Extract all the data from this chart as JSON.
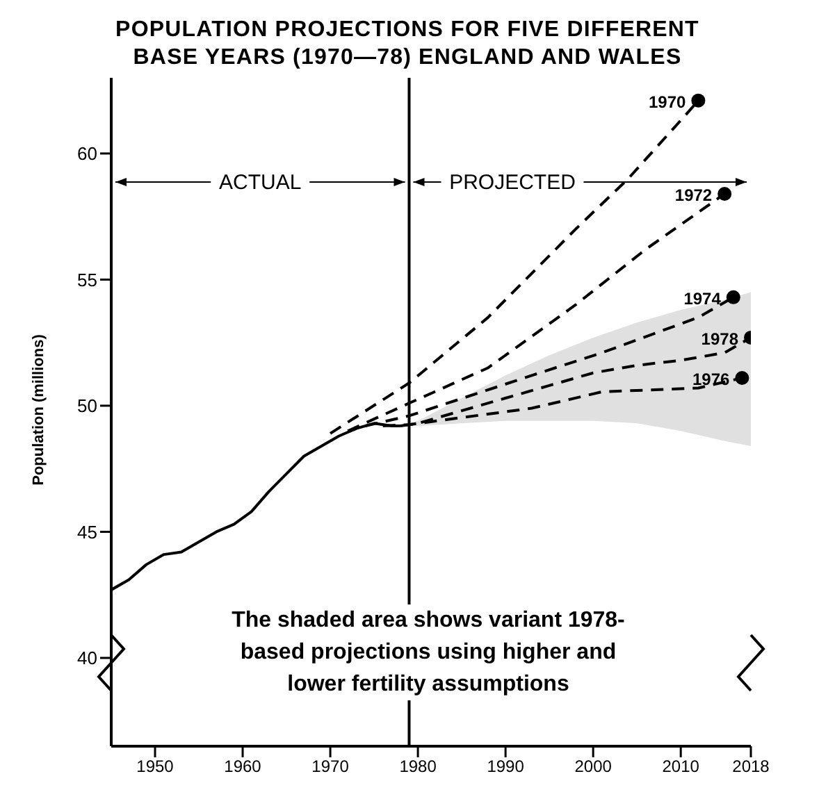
{
  "chart_data": {
    "type": "line",
    "title": "POPULATION PROJECTIONS FOR FIVE DIFFERENT BASE YEARS (1970—78) ENGLAND AND WALES",
    "ylabel": "Population (millions)",
    "xlim": [
      1945,
      2018
    ],
    "xticks": [
      1950,
      1960,
      1970,
      1980,
      1990,
      2000,
      2010,
      2018
    ],
    "ylim": [
      36.5,
      63
    ],
    "yticks": [
      40,
      45,
      50,
      55,
      60
    ],
    "ref_lines": [
      {
        "axis": "x",
        "value": 1979,
        "color": "#000000",
        "line_style": "solid"
      }
    ],
    "annotations": [
      "ACTUAL",
      "PROJECTED",
      "The shaded area shows variant 1978-based projections using higher and lower fertility assumptions"
    ],
    "series": [
      {
        "color": "#000000",
        "line_style": "solid",
        "x": [
          1945,
          1947,
          1949,
          1951,
          1953,
          1955,
          1957,
          1959,
          1961,
          1963,
          1965,
          1967,
          1969,
          1971,
          1973,
          1975,
          1977,
          1978
        ],
        "values": [
          42.7,
          43.1,
          43.7,
          44.1,
          44.2,
          44.6,
          45.0,
          45.3,
          45.8,
          46.6,
          47.3,
          48.0,
          48.4,
          48.8,
          49.1,
          49.3,
          49.2,
          49.2
        ]
      },
      {
        "name": "1970",
        "color": "#000000",
        "line_style": "dashed",
        "x": [
          1970,
          1979,
          1988,
          1998,
          2004,
          2011,
          2012
        ],
        "values": [
          48.9,
          50.9,
          53.5,
          57.0,
          59.0,
          61.7,
          62.1
        ]
      },
      {
        "name": "1972",
        "color": "#000000",
        "line_style": "dashed",
        "x": [
          1972,
          1979,
          1988,
          1998,
          2006,
          2015
        ],
        "values": [
          49.0,
          50.1,
          51.5,
          54.0,
          56.2,
          58.4
        ]
      },
      {
        "name": "1974",
        "color": "#000000",
        "line_style": "dashed",
        "x": [
          1974,
          1979,
          1993,
          2001,
          2012,
          2016
        ],
        "values": [
          49.2,
          49.6,
          51.2,
          52.1,
          53.5,
          54.3
        ]
      },
      {
        "name": "1978",
        "color": "#000000",
        "line_style": "dashed",
        "x": [
          1978,
          1980,
          1985,
          1990,
          1995,
          2000,
          2005,
          2010,
          2015,
          2018
        ],
        "values": [
          49.2,
          49.3,
          49.8,
          50.3,
          50.8,
          51.3,
          51.6,
          51.8,
          52.1,
          52.7
        ],
        "lower": [
          49.2,
          49.2,
          49.3,
          49.4,
          49.4,
          49.4,
          49.3,
          49.0,
          48.6,
          48.4
        ],
        "upper": [
          49.2,
          49.4,
          50.3,
          51.2,
          52.0,
          52.7,
          53.3,
          53.8,
          54.2,
          54.5
        ]
      },
      {
        "name": "1976",
        "color": "#000000",
        "line_style": "dashed",
        "x": [
          1976,
          1979,
          1993,
          2001,
          2012,
          2017
        ],
        "values": [
          49.2,
          49.25,
          49.9,
          50.55,
          50.7,
          51.1
        ]
      },
      {
        "type": "scatter",
        "color": "#000000",
        "marker": "circle",
        "x": [
          2012,
          2015,
          2016,
          2017,
          2018
        ],
        "values": [
          62.1,
          58.4,
          54.3,
          51.1,
          52.7
        ]
      }
    ]
  }
}
